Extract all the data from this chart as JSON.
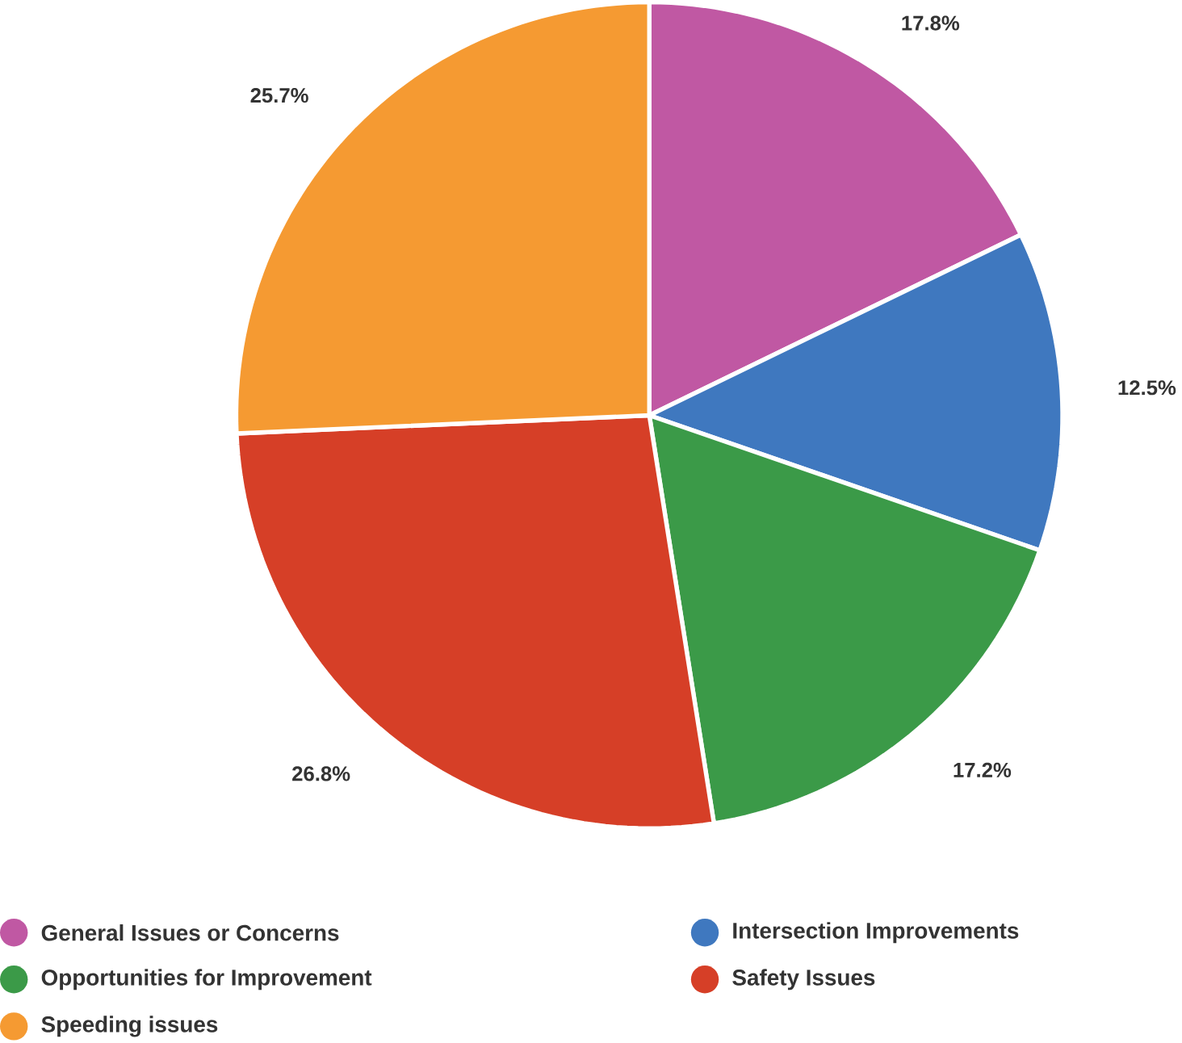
{
  "chart_data": {
    "type": "pie",
    "categories": [
      "General Issues or Concerns",
      "Intersection Improvements",
      "Opportunities for Improvement",
      "Safety Issues",
      "Speeding issues"
    ],
    "values": [
      17.8,
      12.5,
      17.2,
      26.8,
      25.7
    ],
    "value_labels": [
      "17.8%",
      "12.5%",
      "17.2%",
      "26.8%",
      "25.7%"
    ],
    "colors": [
      "#c058a3",
      "#3f78bf",
      "#3b9a48",
      "#d63f27",
      "#f59a32"
    ],
    "legend": "bottom"
  }
}
